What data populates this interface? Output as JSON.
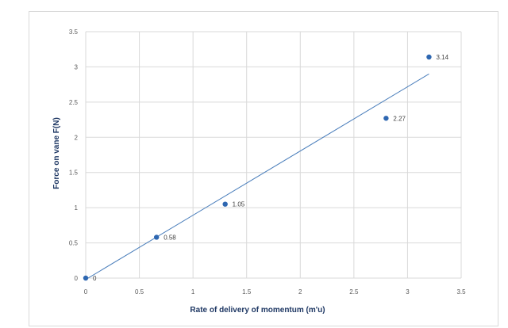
{
  "chart_data": {
    "type": "scatter",
    "title": "",
    "xlabel": "Rate of delivery of momentum (m'u)",
    "ylabel": "Force on vane F(N)",
    "xlim": [
      0,
      3.5
    ],
    "ylim": [
      0,
      3.5
    ],
    "xticks": [
      "0",
      "0.5",
      "1",
      "1.5",
      "2",
      "2.5",
      "3",
      "3.5"
    ],
    "yticks": [
      "0",
      "0.5",
      "1",
      "1.5",
      "2",
      "2.5",
      "3",
      "3.5"
    ],
    "grid": true,
    "legend": "none",
    "series": [
      {
        "points": [
          {
            "x": 0,
            "y": 0,
            "label": "0"
          },
          {
            "x": 0.66,
            "y": 0.58,
            "label": "0.58"
          },
          {
            "x": 1.3,
            "y": 1.05,
            "label": "1.05"
          },
          {
            "x": 2.8,
            "y": 2.27,
            "label": "2.27"
          },
          {
            "x": 3.2,
            "y": 3.14,
            "label": "3.14"
          }
        ]
      }
    ],
    "trendline": {
      "type": "linear",
      "x": [
        0,
        3.2
      ],
      "y": [
        -0.02,
        2.9
      ]
    },
    "colors": {
      "marker": "#2e67b1",
      "trendline": "#4a7ebb",
      "grid": "#d9d9d9",
      "axis_title": "#1f3864"
    }
  }
}
